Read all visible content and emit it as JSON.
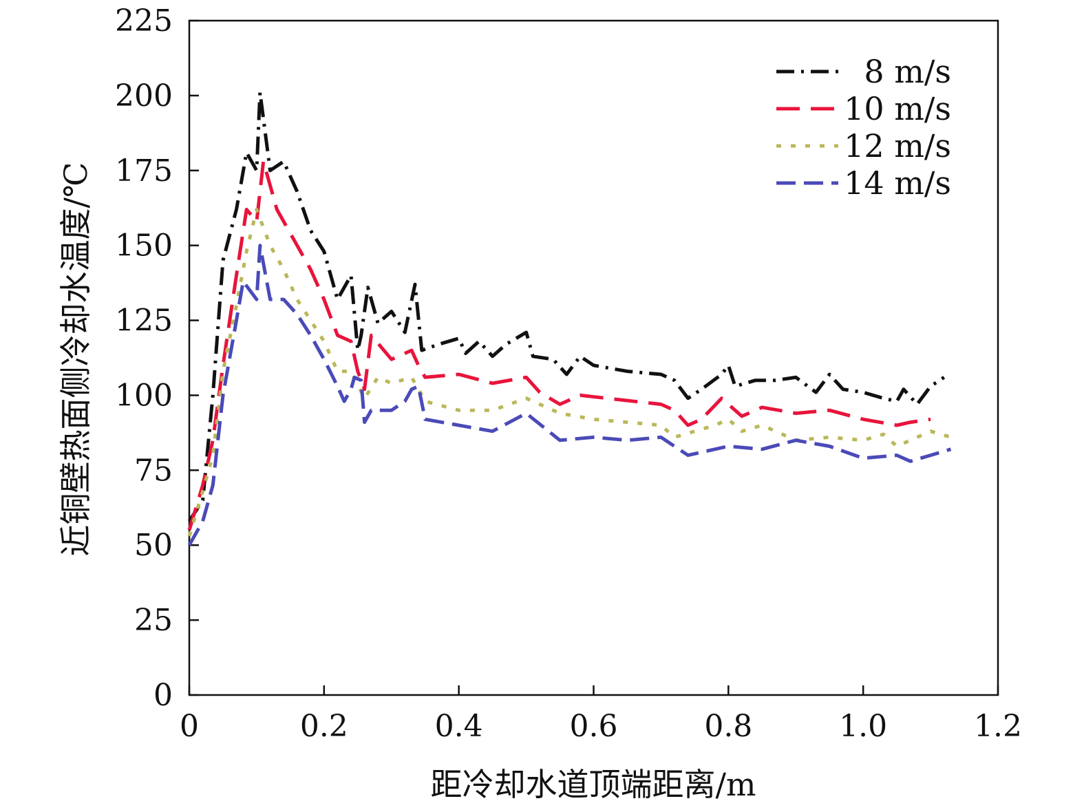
{
  "chart_data": {
    "type": "line",
    "xlabel": "距冷却水道顶端距离/m",
    "ylabel": "近铜壁热面侧冷却水温度/℃",
    "xlim": [
      0,
      1.2
    ],
    "ylim": [
      0,
      225
    ],
    "xticks": [
      0,
      0.2,
      0.4,
      0.6,
      0.8,
      1.0,
      1.2
    ],
    "xtick_labels": [
      "0",
      "0.2",
      "0.4",
      "0.6",
      "0.8",
      "1.0",
      "1.2"
    ],
    "yticks": [
      0,
      25,
      50,
      75,
      100,
      125,
      150,
      175,
      200,
      225
    ],
    "ytick_labels": [
      "0",
      "25",
      "50",
      "75",
      "100",
      "125",
      "150",
      "175",
      "200",
      "225"
    ],
    "grid": false,
    "legend_position": "top-right",
    "series": [
      {
        "name": "8 m/s",
        "color": "#111111",
        "dash": "dash-dot",
        "x": [
          0,
          0.02,
          0.035,
          0.05,
          0.07,
          0.085,
          0.1,
          0.105,
          0.12,
          0.14,
          0.16,
          0.18,
          0.2,
          0.22,
          0.24,
          0.25,
          0.255,
          0.265,
          0.28,
          0.3,
          0.32,
          0.335,
          0.345,
          0.37,
          0.4,
          0.41,
          0.43,
          0.45,
          0.47,
          0.5,
          0.51,
          0.54,
          0.56,
          0.58,
          0.6,
          0.65,
          0.7,
          0.72,
          0.74,
          0.76,
          0.79,
          0.8,
          0.81,
          0.84,
          0.87,
          0.9,
          0.93,
          0.95,
          0.97,
          1.0,
          1.03,
          1.05,
          1.06,
          1.08,
          1.1,
          1.12
        ],
        "y": [
          58,
          65,
          100,
          145,
          162,
          181,
          175,
          201,
          175,
          178,
          168,
          155,
          148,
          132,
          140,
          115,
          120,
          136,
          124,
          128,
          121,
          137,
          115,
          117,
          119,
          114,
          118,
          113,
          117,
          121,
          113,
          112,
          107,
          113,
          110,
          108,
          107,
          105,
          99,
          102,
          107,
          110,
          103,
          105,
          105,
          106,
          101,
          107,
          102,
          101,
          99,
          98,
          102,
          97,
          103,
          106
        ]
      },
      {
        "name": "10 m/s",
        "color": "#e8143c",
        "dash": "long-dash",
        "x": [
          0,
          0.02,
          0.035,
          0.05,
          0.07,
          0.085,
          0.1,
          0.11,
          0.13,
          0.16,
          0.18,
          0.2,
          0.22,
          0.24,
          0.25,
          0.26,
          0.27,
          0.3,
          0.33,
          0.34,
          0.35,
          0.4,
          0.45,
          0.5,
          0.52,
          0.55,
          0.58,
          0.62,
          0.66,
          0.7,
          0.72,
          0.74,
          0.76,
          0.79,
          0.82,
          0.85,
          0.9,
          0.95,
          1.0,
          1.05,
          1.07,
          1.1
        ],
        "y": [
          55,
          70,
          85,
          110,
          140,
          162,
          158,
          178,
          162,
          150,
          142,
          132,
          120,
          118,
          108,
          102,
          120,
          112,
          115,
          110,
          106,
          107,
          104,
          106,
          101,
          97,
          100,
          99,
          98,
          97,
          95,
          90,
          92,
          99,
          93,
          96,
          94,
          95,
          92,
          90,
          91,
          92
        ]
      },
      {
        "name": "12 m/s",
        "color": "#b9b85a",
        "dash": "dotted",
        "x": [
          0,
          0.02,
          0.035,
          0.05,
          0.07,
          0.085,
          0.1,
          0.12,
          0.14,
          0.16,
          0.18,
          0.2,
          0.22,
          0.24,
          0.26,
          0.28,
          0.3,
          0.33,
          0.35,
          0.4,
          0.45,
          0.5,
          0.55,
          0.6,
          0.65,
          0.7,
          0.72,
          0.75,
          0.78,
          0.8,
          0.82,
          0.85,
          0.9,
          0.95,
          1.0,
          1.03,
          1.05,
          1.1,
          1.13
        ],
        "y": [
          53,
          68,
          80,
          108,
          130,
          148,
          162,
          150,
          142,
          132,
          125,
          118,
          108,
          108,
          99,
          106,
          104,
          106,
          98,
          95,
          95,
          99,
          94,
          92,
          91,
          90,
          86,
          88,
          90,
          92,
          88,
          90,
          85,
          86,
          85,
          87,
          83,
          88,
          86
        ]
      },
      {
        "name": "14 m/s",
        "color": "#4a4ab8",
        "dash": "dash",
        "x": [
          0,
          0.02,
          0.035,
          0.05,
          0.07,
          0.08,
          0.1,
          0.105,
          0.12,
          0.14,
          0.16,
          0.18,
          0.2,
          0.22,
          0.23,
          0.24,
          0.245,
          0.255,
          0.26,
          0.27,
          0.3,
          0.32,
          0.33,
          0.34,
          0.35,
          0.4,
          0.45,
          0.5,
          0.55,
          0.6,
          0.65,
          0.7,
          0.74,
          0.78,
          0.8,
          0.85,
          0.9,
          0.95,
          1.0,
          1.05,
          1.07,
          1.1,
          1.13
        ],
        "y": [
          50,
          58,
          70,
          100,
          125,
          138,
          132,
          150,
          132,
          132,
          127,
          120,
          112,
          103,
          98,
          102,
          106,
          105,
          91,
          95,
          95,
          98,
          102,
          103,
          92,
          90,
          88,
          94,
          85,
          86,
          85,
          86,
          80,
          82,
          83,
          82,
          85,
          83,
          79,
          80,
          78,
          80,
          82
        ]
      }
    ]
  }
}
